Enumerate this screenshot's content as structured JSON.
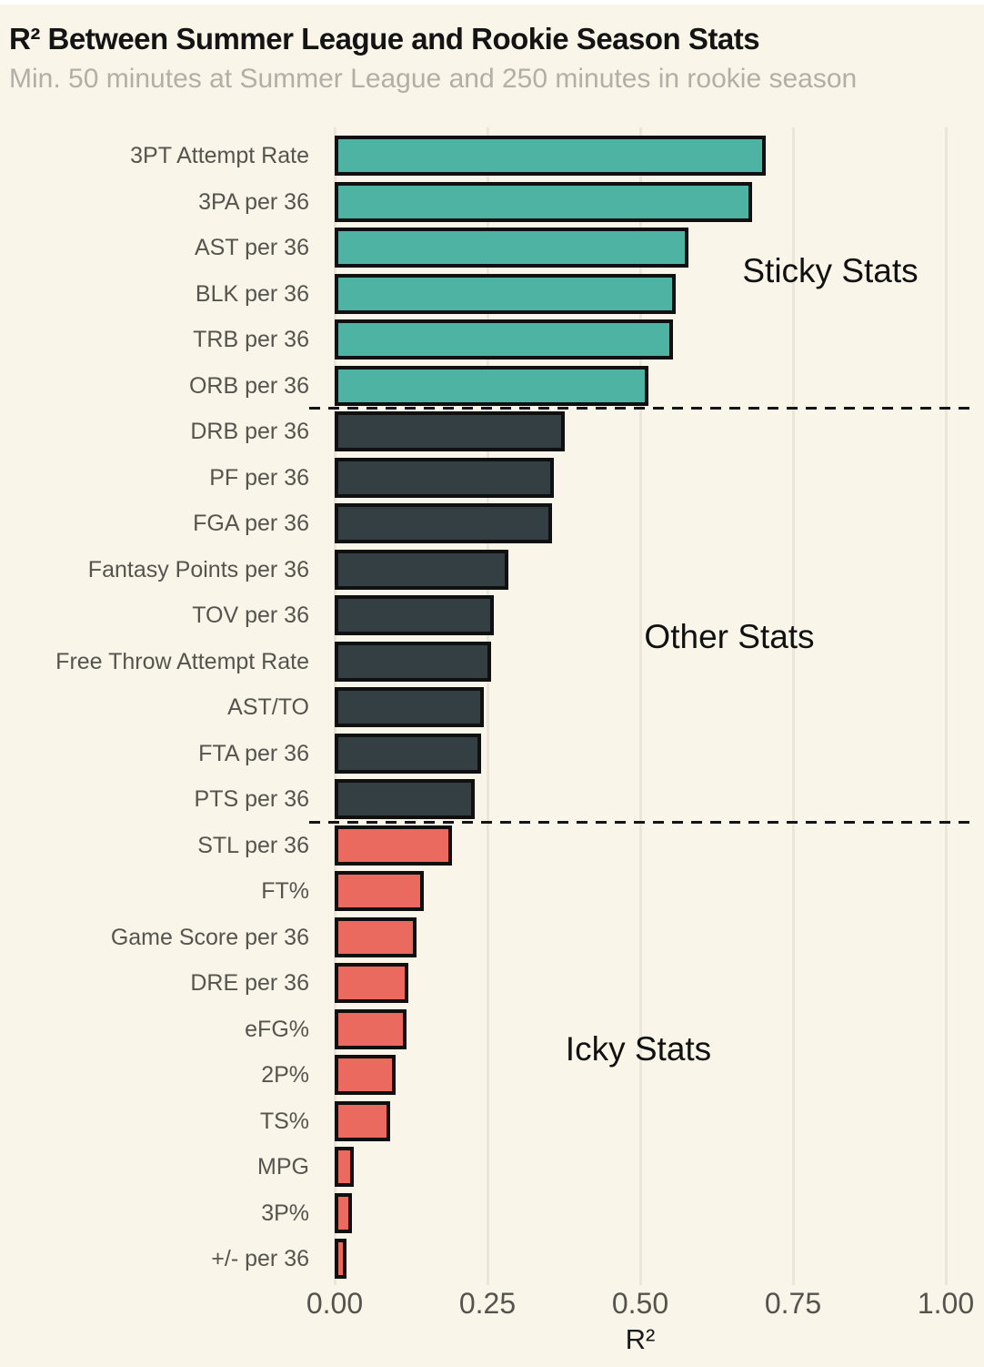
{
  "header": {
    "title": "R² Between Summer League and Rookie Season Stats",
    "subtitle": "Min. 50 minutes at Summer League and 250 minutes in rookie season"
  },
  "chart_data": {
    "type": "bar",
    "orientation": "horizontal",
    "title": "R² Between Summer League and Rookie Season Stats",
    "subtitle": "Min. 50 minutes at Summer League and 250 minutes in rookie season",
    "xlabel": "R²",
    "xlim": [
      0,
      1.0
    ],
    "x_ticks": [
      0,
      0.25,
      0.5,
      0.75,
      1.0
    ],
    "x_tick_labels": [
      "0.00",
      "0.25",
      "0.50",
      "0.75",
      "1.00"
    ],
    "grid": true,
    "legend_position": "none",
    "bars": [
      {
        "label": "3PT Attempt Rate",
        "value": 0.705,
        "group": "sticky"
      },
      {
        "label": "3PA per 36",
        "value": 0.683,
        "group": "sticky"
      },
      {
        "label": "AST per 36",
        "value": 0.579,
        "group": "sticky"
      },
      {
        "label": "BLK per 36",
        "value": 0.558,
        "group": "sticky"
      },
      {
        "label": "TRB per 36",
        "value": 0.554,
        "group": "sticky"
      },
      {
        "label": "ORB per 36",
        "value": 0.513,
        "group": "sticky"
      },
      {
        "label": "DRB per 36",
        "value": 0.377,
        "group": "other"
      },
      {
        "label": "PF per 36",
        "value": 0.359,
        "group": "other"
      },
      {
        "label": "FGA per 36",
        "value": 0.356,
        "group": "other"
      },
      {
        "label": "Fantasy Points per 36",
        "value": 0.284,
        "group": "other"
      },
      {
        "label": "TOV per 36",
        "value": 0.261,
        "group": "other"
      },
      {
        "label": "Free Throw Attempt Rate",
        "value": 0.256,
        "group": "other"
      },
      {
        "label": "AST/TO",
        "value": 0.244,
        "group": "other"
      },
      {
        "label": "FTA per 36",
        "value": 0.24,
        "group": "other"
      },
      {
        "label": "PTS per 36",
        "value": 0.229,
        "group": "other"
      },
      {
        "label": "STL per 36",
        "value": 0.192,
        "group": "icky"
      },
      {
        "label": "FT%",
        "value": 0.146,
        "group": "icky"
      },
      {
        "label": "Game Score per 36",
        "value": 0.134,
        "group": "icky"
      },
      {
        "label": "DRE per 36",
        "value": 0.12,
        "group": "icky"
      },
      {
        "label": "eFG%",
        "value": 0.118,
        "group": "icky"
      },
      {
        "label": "2P%",
        "value": 0.1,
        "group": "icky"
      },
      {
        "label": "TS%",
        "value": 0.091,
        "group": "icky"
      },
      {
        "label": "MPG",
        "value": 0.031,
        "group": "icky"
      },
      {
        "label": "3P%",
        "value": 0.028,
        "group": "icky"
      },
      {
        "label": "+/- per 36",
        "value": 0.019,
        "group": "icky"
      }
    ],
    "group_colors": {
      "sticky": "#4eb3a3",
      "other": "#343f44",
      "icky": "#ea6a60"
    },
    "annotations": [
      {
        "text": "Sticky Stats",
        "group": "sticky"
      },
      {
        "text": "Other Stats",
        "group": "other"
      },
      {
        "text": "Icky Stats",
        "group": "icky"
      }
    ],
    "separators": [
      {
        "after": "ORB per 36"
      },
      {
        "after": "PTS per 36"
      }
    ]
  },
  "colors": {
    "background": "#faf5e9",
    "bar_outline": "#101010",
    "gridline": "#ece6d9",
    "title": "#141414",
    "subtitle": "#b3afa6",
    "category_label": "#56544e",
    "tick_label": "#55534e",
    "annotation": "#111111",
    "axis_label": "#1a1a1a",
    "separator": "#151515"
  }
}
